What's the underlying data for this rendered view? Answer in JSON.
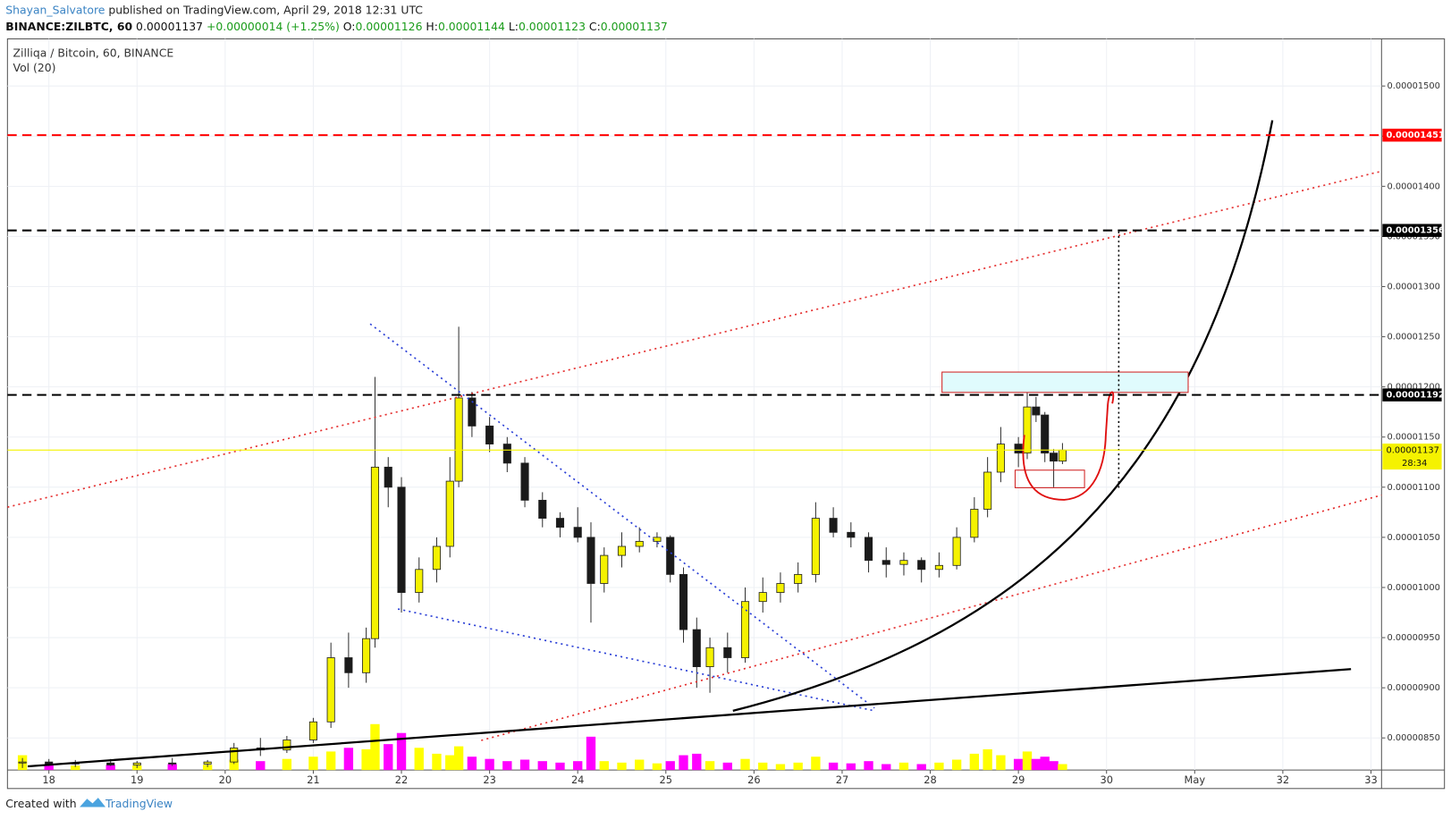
{
  "header": {
    "author": "Shayan_Salvatore",
    "published": " published on TradingView.com, April 29, 2018 12:31 UTC",
    "quote": [
      "BINANCE:ZILBTC, 60",
      "0.00001137",
      "+0.00000014 (+1.25%)",
      "O:",
      "0.00001126",
      "H:",
      "0.00001144",
      "L:",
      "0.00001123",
      "C:",
      "0.00001137"
    ]
  },
  "footer": {
    "created": "Created with",
    "brand": "TradingView"
  },
  "chart_data": {
    "type": "candlestick",
    "title": "Zilliqa / Bitcoin, 60, BINANCE",
    "volume_label": "Vol (20)",
    "up_color": "#f5f200",
    "down_color": "#1a1a1a",
    "volume_up_color": "#ffff00",
    "volume_down_color": "#ff00ff",
    "x": [
      17.7,
      18.0,
      18.3,
      18.7,
      19.0,
      19.4,
      19.8,
      20.1,
      20.4,
      20.7,
      21.0,
      21.2,
      21.4,
      21.6,
      21.7,
      21.85,
      22.0,
      22.2,
      22.4,
      22.55,
      22.65,
      22.8,
      23.0,
      23.2,
      23.4,
      23.6,
      23.8,
      24.0,
      24.15,
      24.3,
      24.5,
      24.7,
      24.9,
      25.05,
      25.2,
      25.35,
      25.5,
      25.7,
      25.9,
      26.1,
      26.3,
      26.5,
      26.7,
      26.9,
      27.1,
      27.3,
      27.5,
      27.7,
      27.9,
      28.1,
      28.3,
      28.5,
      28.65,
      28.8,
      29.0,
      29.1,
      29.2,
      29.3,
      29.4,
      29.5
    ],
    "open": [
      8.25e-06,
      8.26e-06,
      8.24e-06,
      8.25e-06,
      8.23e-06,
      8.25e-06,
      8.24e-06,
      8.26e-06,
      8.4e-06,
      8.38e-06,
      8.48e-06,
      8.66e-06,
      9.3e-06,
      9.15e-06,
      9.49e-06,
      1.12e-05,
      1.1e-05,
      9.95e-06,
      1.018e-05,
      1.041e-05,
      1.106e-05,
      1.189e-05,
      1.161e-05,
      1.143e-05,
      1.124e-05,
      1.087e-05,
      1.069e-05,
      1.06e-05,
      1.05e-05,
      1.004e-05,
      1.032e-05,
      1.041e-05,
      1.046e-05,
      1.05e-05,
      1.013e-05,
      9.58e-06,
      9.21e-06,
      9.4e-06,
      9.3e-06,
      9.86e-06,
      9.95e-06,
      1.004e-05,
      1.013e-05,
      1.069e-05,
      1.055e-05,
      1.05e-05,
      1.027e-05,
      1.023e-05,
      1.027e-05,
      1.018e-05,
      1.022e-05,
      1.05e-05,
      1.078e-05,
      1.115e-05,
      1.143e-05,
      1.134e-05,
      1.18e-05,
      1.172e-05,
      1.134e-05,
      1.126e-05
    ],
    "high": [
      8.3e-06,
      8.29e-06,
      8.28e-06,
      8.29e-06,
      8.27e-06,
      8.3e-06,
      8.28e-06,
      8.45e-06,
      8.5e-06,
      8.52e-06,
      8.7e-06,
      9.45e-06,
      9.55e-06,
      9.6e-06,
      1.21e-05,
      1.13e-05,
      1.11e-05,
      1.03e-05,
      1.05e-05,
      1.13e-05,
      1.26e-05,
      1.195e-05,
      1.17e-05,
      1.15e-05,
      1.13e-05,
      1.095e-05,
      1.075e-05,
      1.08e-05,
      1.065e-05,
      1.04e-05,
      1.055e-05,
      1.06e-05,
      1.055e-05,
      1.052e-05,
      1.02e-05,
      9.7e-06,
      9.5e-06,
      9.55e-06,
      1e-05,
      1.01e-05,
      1.015e-05,
      1.025e-05,
      1.085e-05,
      1.08e-05,
      1.065e-05,
      1.055e-05,
      1.04e-05,
      1.035e-05,
      1.03e-05,
      1.035e-05,
      1.06e-05,
      1.09e-05,
      1.13e-05,
      1.16e-05,
      1.15e-05,
      1.195e-05,
      1.19e-05,
      1.175e-05,
      1.138e-05,
      1.144e-05
    ],
    "low": [
      8.2e-06,
      8.22e-06,
      8.21e-06,
      8.22e-06,
      8.2e-06,
      8.22e-06,
      8.21e-06,
      8.24e-06,
      8.32e-06,
      8.35e-06,
      8.45e-06,
      8.6e-06,
      9e-06,
      9.05e-06,
      9.4e-06,
      1.08e-05,
      9.75e-06,
      9.85e-06,
      1.005e-05,
      1.03e-05,
      1.1e-05,
      1.15e-05,
      1.135e-05,
      1.115e-05,
      1.08e-05,
      1.06e-05,
      1.05e-05,
      1.045e-05,
      9.65e-06,
      9.95e-06,
      1.02e-05,
      1.035e-05,
      1.04e-05,
      1.005e-05,
      9.45e-06,
      9e-06,
      8.95e-06,
      9.15e-06,
      9.25e-06,
      9.75e-06,
      9.85e-06,
      9.95e-06,
      1.005e-05,
      1.05e-05,
      1.04e-05,
      1.015e-05,
      1.01e-05,
      1.012e-05,
      1.005e-05,
      1.01e-05,
      1.018e-05,
      1.045e-05,
      1.07e-05,
      1.105e-05,
      1.12e-05,
      1.128e-05,
      1.165e-05,
      1.125e-05,
      1.1e-05,
      1.123e-05
    ],
    "close": [
      8.26e-06,
      8.24e-06,
      8.25e-06,
      8.23e-06,
      8.25e-06,
      8.24e-06,
      8.26e-06,
      8.4e-06,
      8.38e-06,
      8.48e-06,
      8.66e-06,
      9.3e-06,
      9.15e-06,
      9.49e-06,
      1.12e-05,
      1.1e-05,
      9.95e-06,
      1.018e-05,
      1.041e-05,
      1.106e-05,
      1.189e-05,
      1.161e-05,
      1.143e-05,
      1.124e-05,
      1.087e-05,
      1.069e-05,
      1.06e-05,
      1.05e-05,
      1.004e-05,
      1.032e-05,
      1.041e-05,
      1.046e-05,
      1.05e-05,
      1.013e-05,
      9.58e-06,
      9.21e-06,
      9.4e-06,
      9.3e-06,
      9.86e-06,
      9.95e-06,
      1.004e-05,
      1.013e-05,
      1.069e-05,
      1.055e-05,
      1.05e-05,
      1.027e-05,
      1.023e-05,
      1.027e-05,
      1.018e-05,
      1.022e-05,
      1.05e-05,
      1.078e-05,
      1.115e-05,
      1.143e-05,
      1.134e-05,
      1.18e-05,
      1.172e-05,
      1.134e-05,
      1.126e-05,
      1.137e-05
    ],
    "volume": [
      20,
      8,
      6,
      7,
      6,
      8,
      7,
      14,
      12,
      15,
      18,
      25,
      30,
      28,
      62,
      35,
      50,
      30,
      22,
      20,
      32,
      18,
      15,
      12,
      14,
      12,
      10,
      12,
      45,
      12,
      10,
      14,
      9,
      12,
      20,
      22,
      12,
      10,
      15,
      10,
      8,
      10,
      18,
      10,
      9,
      12,
      8,
      10,
      8,
      10,
      14,
      22,
      28,
      20,
      15,
      25,
      15,
      18,
      12,
      8
    ],
    "xlim": [
      17.53,
      33.12
    ],
    "xticks": [
      18,
      19,
      20,
      21,
      22,
      23,
      24,
      25,
      26,
      27,
      28,
      29,
      30,
      {
        "value": 31,
        "label": "May"
      },
      32,
      33
    ],
    "ylim": [
      8.18e-06,
      1.547e-05
    ],
    "yticks": [
      {
        "value": 8.5e-06,
        "label": "0.00000850"
      },
      {
        "value": 9e-06,
        "label": "0.00000900"
      },
      {
        "value": 9.5e-06,
        "label": "0.00000950"
      },
      {
        "value": 1e-05,
        "label": "0.00001000"
      },
      {
        "value": 1.05e-05,
        "label": "0.00001050"
      },
      {
        "value": 1.1e-05,
        "label": "0.00001100"
      },
      {
        "value": 1.15e-05,
        "label": "0.00001150"
      },
      {
        "value": 1.2e-05,
        "label": "0.00001200"
      },
      {
        "value": 1.25e-05,
        "label": "0.00001250"
      },
      {
        "value": 1.3e-05,
        "label": "0.00001300"
      },
      {
        "value": 1.35e-05,
        "label": "0.00001350"
      },
      {
        "value": 1.4e-05,
        "label": "0.00001400"
      },
      {
        "value": 1.45e-05,
        "label": "0.00001450"
      },
      {
        "value": 1.5e-05,
        "label": "0.00001500"
      }
    ],
    "grid": true,
    "levels": [
      {
        "value": 1.451e-05,
        "label": "0.00001451",
        "color": "#ff0000"
      },
      {
        "value": 1.356e-05,
        "label": "0.00001356",
        "color": "#000000"
      },
      {
        "value": 1.192e-05,
        "label": "0.00001192",
        "color": "#000000"
      }
    ],
    "last": {
      "value": 1.137e-05,
      "label": "0.00001137",
      "countdown": "28:34",
      "color": "#f5f200"
    }
  }
}
